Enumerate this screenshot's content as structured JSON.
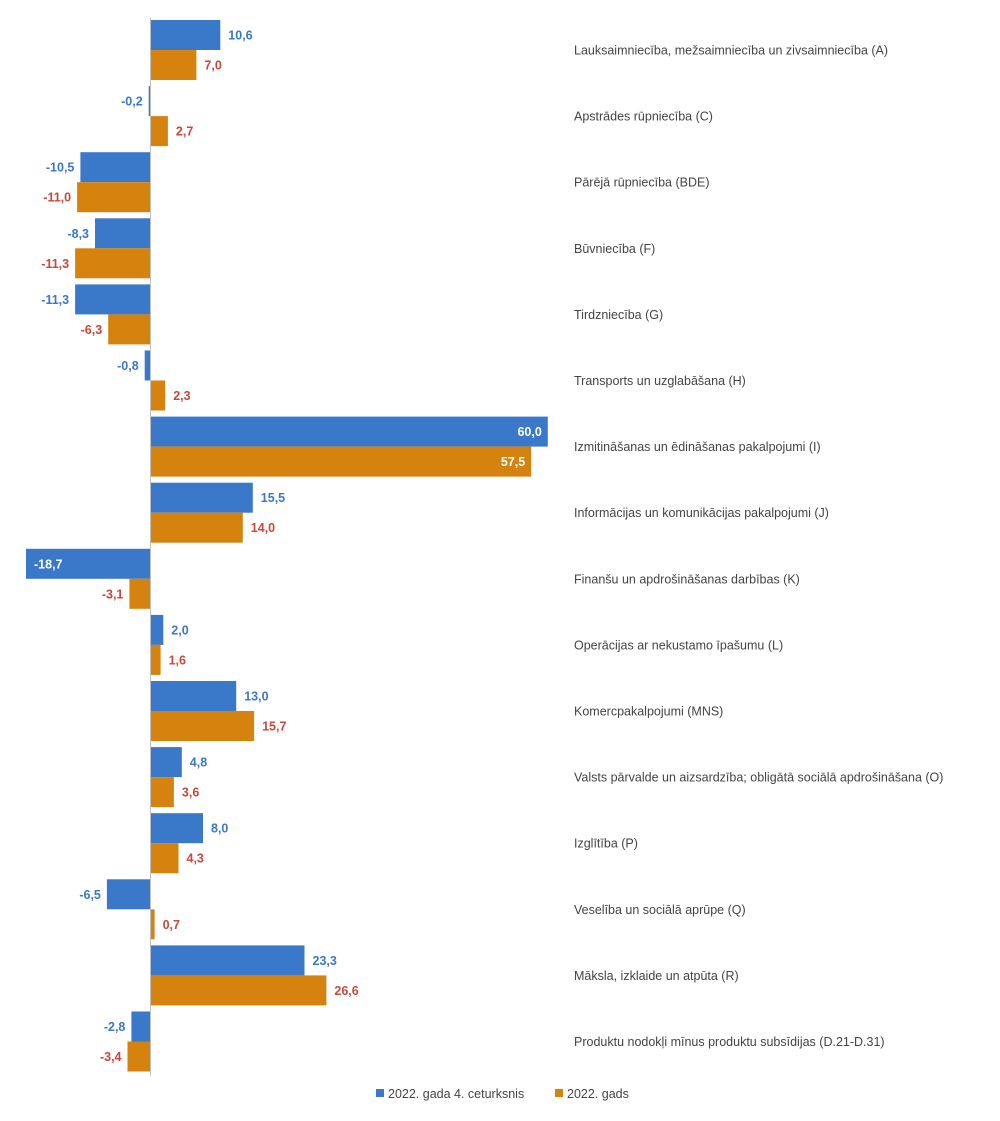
{
  "chart_data": {
    "type": "bar",
    "orientation": "horizontal",
    "categories": [
      "Lauksaimniecība, mežsaimniecība un zivsaimniecība (A)",
      "Apstrādes rūpniecība (C)",
      "Pārējā rūpniecība (BDE)",
      "Būvniecība (F)",
      "Tirdzniecība (G)",
      "Transports un uzglabāšana (H)",
      "Izmitināšanas un ēdināšanas pakalpojumi (I)",
      "Informācijas un komunikācijas pakalpojumi (J)",
      "Finanšu un apdrošināšanas darbības (K)",
      "Operācijas ar nekustamo īpašumu (L)",
      "Komercpakalpojumi (MNS)",
      "Valsts pārvalde un aizsardzība; obligātā sociālā apdrošināšana (O)",
      "Izglītība (P)",
      "Veselība un sociālā aprūpe (Q)",
      "Māksla, izklaide un atpūta (R)",
      "Produktu nodokļi mīnus produktu subsīdijas (D.21-D.31)"
    ],
    "series": [
      {
        "name": "2022. gada 4. ceturksnis",
        "color": "#3a78c9",
        "label_color": "#3a78c9",
        "values": [
          10.6,
          -0.2,
          -10.5,
          -8.3,
          -11.3,
          -0.8,
          60.0,
          15.5,
          -18.7,
          2.0,
          13.0,
          4.8,
          8.0,
          -6.5,
          23.3,
          -2.8
        ],
        "labels": [
          "10,6",
          "-0,2",
          "-10,5",
          "-8,3",
          "-11,3",
          "-0,8",
          "60,0",
          "15,5",
          "-18,7",
          "2,0",
          "13,0",
          "4,8",
          "8,0",
          "-6,5",
          "23,3",
          "-2,8"
        ]
      },
      {
        "name": "2022. gads",
        "color": "#d6820e",
        "label_color": "#c9473b",
        "values": [
          7.0,
          2.7,
          -11.0,
          -11.3,
          -6.3,
          2.3,
          57.5,
          14.0,
          -3.1,
          1.6,
          15.7,
          3.6,
          4.3,
          0.7,
          26.6,
          -3.4
        ],
        "labels": [
          "7,0",
          "2,7",
          "-11,0",
          "-11,3",
          "-6,3",
          "2,3",
          "57,5",
          "14,0",
          "-3,1",
          "1,6",
          "15,7",
          "3,6",
          "4,3",
          "0,7",
          "26,6",
          "-3,4"
        ]
      }
    ],
    "xlim": [
      -18.7,
      60.0
    ],
    "grid": false,
    "legend_position": "bottom"
  }
}
